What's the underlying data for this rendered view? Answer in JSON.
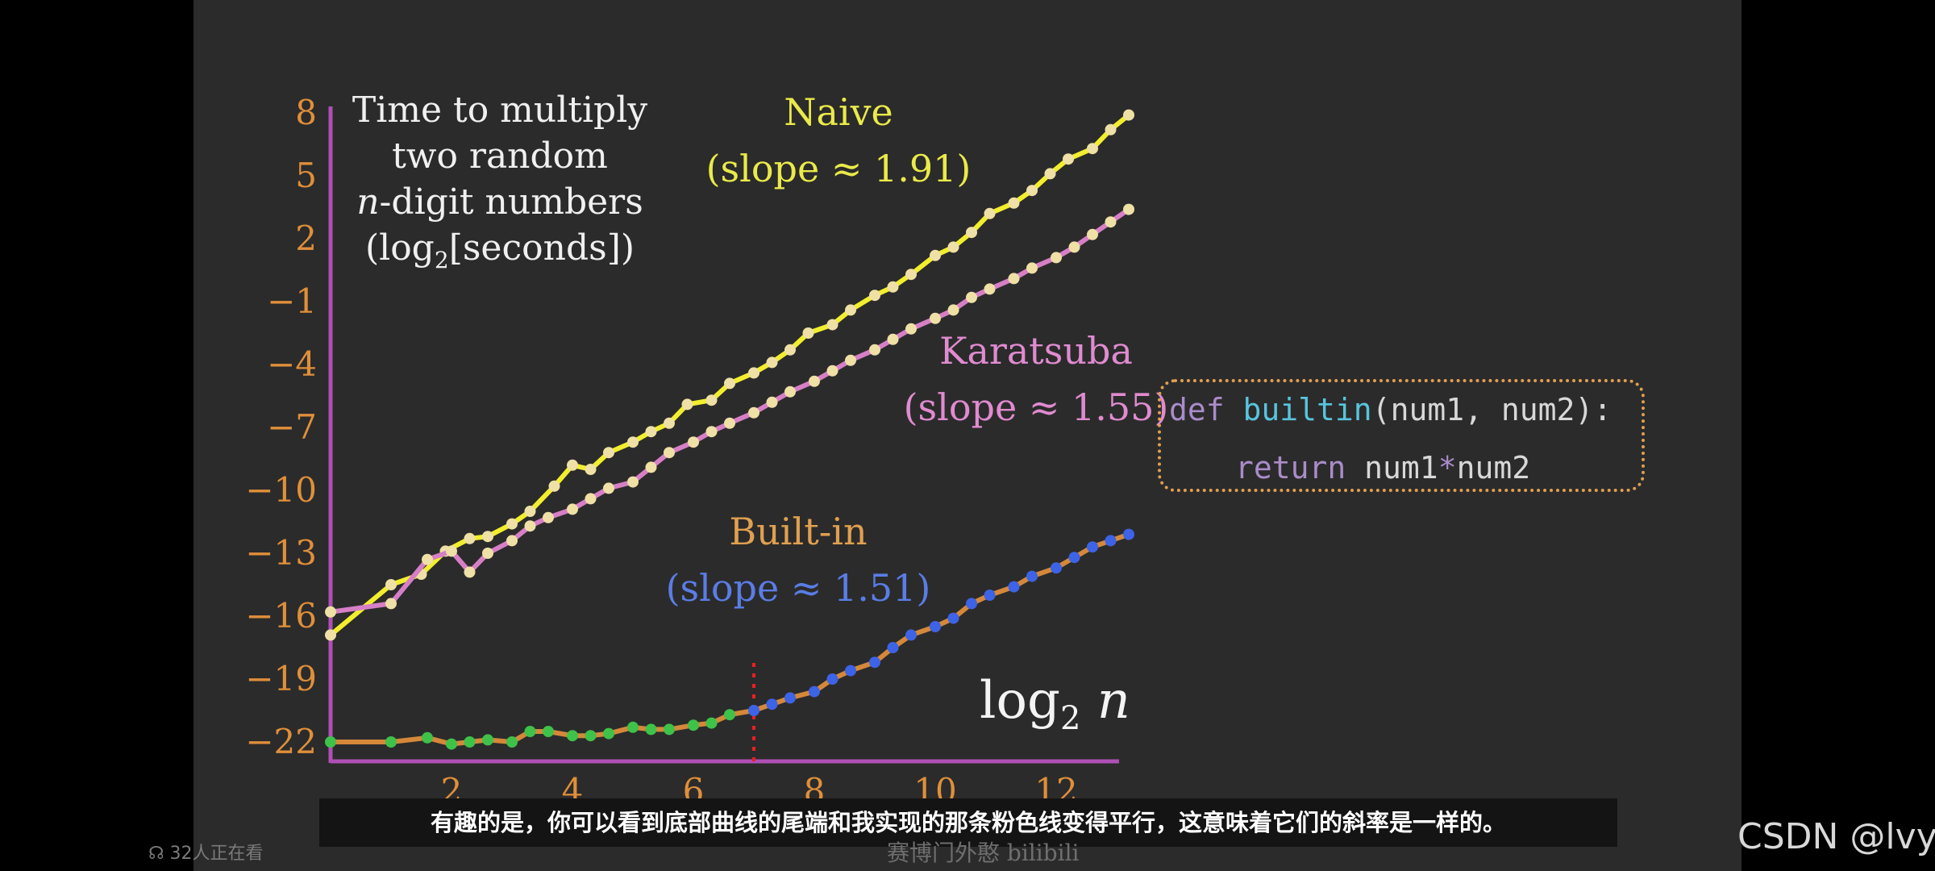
{
  "video": {
    "subtitle": "有趣的是，你可以看到底部曲线的尾端和我实现的那条粉色线变得平行，这意味着它们的斜率是一样的。",
    "viewers": "32人正在看",
    "watermark": "赛博门外憨 bilibili",
    "csdn_watermark": "CSDN @lvy-"
  },
  "code": {
    "line1": {
      "kw": "def",
      "fn": "builtin",
      "rest": "(num1, num2):"
    },
    "line2": {
      "kw": "return",
      "rest_a": "num1",
      "op": "*",
      "rest_b": "num2"
    }
  },
  "labels": {
    "title_line1": "Time to multiply",
    "title_line2": "two random",
    "title_n": "n",
    "title_line3_rest": "-digit numbers",
    "title_log": "(log",
    "title_sub": "2",
    "title_unit": "[seconds])",
    "naive_name": "Naive",
    "naive_slope": "(slope ≈ 1.91)",
    "karatsuba_name": "Karatsuba",
    "karatsuba_slope": "(slope ≈ 1.55)",
    "builtin_name": "Built-in",
    "builtin_slope": "(slope ≈ 1.51)",
    "xlabel_log": "log",
    "xlabel_sub": "2",
    "xlabel_n": "n"
  },
  "chart_data": {
    "type": "line",
    "xlabel": "log2 n",
    "ylabel": "log2[seconds]",
    "title": "Time to multiply two random n-digit numbers (log2[seconds])",
    "xlim": [
      0,
      13
    ],
    "ylim": [
      -23,
      8.7
    ],
    "x_ticks": [
      2,
      4,
      6,
      8,
      10,
      12
    ],
    "y_ticks": [
      8,
      5,
      2,
      -1,
      -4,
      -7,
      -10,
      -13,
      -16,
      -19,
      -22
    ],
    "threshold_x": 7,
    "colors": {
      "axis": "#b04fb6",
      "tick": "#e08f3a",
      "naive": "#f2ee2e",
      "karatsuba": "#d67fc6",
      "builtin_line": "#d5883a",
      "builtin_green": "#3fc24a",
      "builtin_blue": "#3d63e6",
      "threshold": "#e82020",
      "marker": "#efe0a6"
    },
    "series": [
      {
        "name": "Naive",
        "slope": 1.91,
        "points": [
          [
            0,
            -16.9
          ],
          [
            1,
            -14.5
          ],
          [
            1.5,
            -14.0
          ],
          [
            1.9,
            -12.9
          ],
          [
            2.3,
            -12.3
          ],
          [
            2.6,
            -12.2
          ],
          [
            3.0,
            -11.6
          ],
          [
            3.3,
            -11.0
          ],
          [
            3.7,
            -9.8
          ],
          [
            4.0,
            -8.8
          ],
          [
            4.3,
            -9.0
          ],
          [
            4.6,
            -8.2
          ],
          [
            5.0,
            -7.7
          ],
          [
            5.3,
            -7.2
          ],
          [
            5.6,
            -6.8
          ],
          [
            5.9,
            -5.9
          ],
          [
            6.3,
            -5.7
          ],
          [
            6.6,
            -4.9
          ],
          [
            7.0,
            -4.4
          ],
          [
            7.3,
            -3.9
          ],
          [
            7.6,
            -3.3
          ],
          [
            7.9,
            -2.5
          ],
          [
            8.3,
            -2.1
          ],
          [
            8.6,
            -1.4
          ],
          [
            9.0,
            -0.7
          ],
          [
            9.3,
            -0.3
          ],
          [
            9.6,
            0.3
          ],
          [
            10.0,
            1.2
          ],
          [
            10.3,
            1.6
          ],
          [
            10.6,
            2.3
          ],
          [
            10.9,
            3.2
          ],
          [
            11.3,
            3.7
          ],
          [
            11.6,
            4.3
          ],
          [
            11.9,
            5.1
          ],
          [
            12.2,
            5.8
          ],
          [
            12.6,
            6.3
          ],
          [
            12.9,
            7.2
          ],
          [
            13.2,
            7.9
          ]
        ]
      },
      {
        "name": "Karatsuba",
        "slope": 1.55,
        "points": [
          [
            0,
            -15.8
          ],
          [
            1,
            -15.4
          ],
          [
            1.6,
            -13.3
          ],
          [
            2.0,
            -12.9
          ],
          [
            2.3,
            -13.9
          ],
          [
            2.6,
            -13.0
          ],
          [
            3.0,
            -12.4
          ],
          [
            3.3,
            -11.7
          ],
          [
            3.6,
            -11.3
          ],
          [
            4.0,
            -10.9
          ],
          [
            4.3,
            -10.4
          ],
          [
            4.6,
            -9.9
          ],
          [
            5.0,
            -9.6
          ],
          [
            5.3,
            -8.9
          ],
          [
            5.6,
            -8.2
          ],
          [
            6.0,
            -7.7
          ],
          [
            6.3,
            -7.2
          ],
          [
            6.6,
            -6.8
          ],
          [
            7.0,
            -6.3
          ],
          [
            7.3,
            -5.8
          ],
          [
            7.6,
            -5.3
          ],
          [
            8.0,
            -4.8
          ],
          [
            8.3,
            -4.3
          ],
          [
            8.6,
            -3.8
          ],
          [
            9.0,
            -3.3
          ],
          [
            9.3,
            -2.8
          ],
          [
            9.6,
            -2.3
          ],
          [
            10.0,
            -1.8
          ],
          [
            10.3,
            -1.4
          ],
          [
            10.6,
            -0.8
          ],
          [
            10.9,
            -0.4
          ],
          [
            11.3,
            0.1
          ],
          [
            11.6,
            0.6
          ],
          [
            12.0,
            1.1
          ],
          [
            12.3,
            1.6
          ],
          [
            12.6,
            2.2
          ],
          [
            12.9,
            2.8
          ],
          [
            13.2,
            3.4
          ]
        ]
      },
      {
        "name": "Built-in",
        "slope": 1.51,
        "points": [
          [
            0,
            -22.0
          ],
          [
            1,
            -22.0
          ],
          [
            1.6,
            -21.8
          ],
          [
            2.0,
            -22.1
          ],
          [
            2.3,
            -22.0
          ],
          [
            2.6,
            -21.9
          ],
          [
            3.0,
            -22.0
          ],
          [
            3.3,
            -21.5
          ],
          [
            3.6,
            -21.5
          ],
          [
            4.0,
            -21.7
          ],
          [
            4.3,
            -21.7
          ],
          [
            4.6,
            -21.6
          ],
          [
            5.0,
            -21.3
          ],
          [
            5.3,
            -21.4
          ],
          [
            5.6,
            -21.4
          ],
          [
            6.0,
            -21.2
          ],
          [
            6.3,
            -21.1
          ],
          [
            6.6,
            -20.7
          ],
          [
            7.0,
            -20.5
          ],
          [
            7.3,
            -20.2
          ],
          [
            7.6,
            -19.9
          ],
          [
            8.0,
            -19.6
          ],
          [
            8.3,
            -19.0
          ],
          [
            8.6,
            -18.6
          ],
          [
            9.0,
            -18.2
          ],
          [
            9.3,
            -17.5
          ],
          [
            9.6,
            -16.9
          ],
          [
            10.0,
            -16.5
          ],
          [
            10.3,
            -16.1
          ],
          [
            10.6,
            -15.4
          ],
          [
            10.9,
            -15.0
          ],
          [
            11.3,
            -14.6
          ],
          [
            11.6,
            -14.1
          ],
          [
            12.0,
            -13.7
          ],
          [
            12.3,
            -13.2
          ],
          [
            12.6,
            -12.7
          ],
          [
            12.9,
            -12.4
          ],
          [
            13.2,
            -12.1
          ]
        ]
      }
    ]
  }
}
